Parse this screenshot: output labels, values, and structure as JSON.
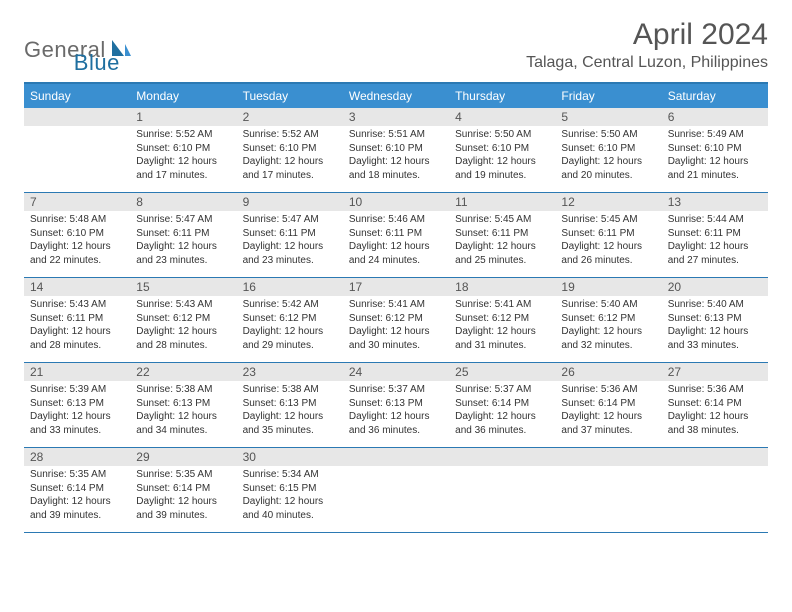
{
  "logo": {
    "text1": "General",
    "text2": "Blue"
  },
  "title": "April 2024",
  "location": "Talaga, Central Luzon, Philippines",
  "colors": {
    "header_bg": "#3a8fd0",
    "border": "#2b79b3",
    "daynum_bg": "#e7e7e7",
    "text": "#333333",
    "title_text": "#555555"
  },
  "weekdays": [
    "Sunday",
    "Monday",
    "Tuesday",
    "Wednesday",
    "Thursday",
    "Friday",
    "Saturday"
  ],
  "start_offset": 1,
  "days": [
    {
      "n": "1",
      "sr": "5:52 AM",
      "ss": "6:10 PM",
      "dl": "12 hours and 17 minutes."
    },
    {
      "n": "2",
      "sr": "5:52 AM",
      "ss": "6:10 PM",
      "dl": "12 hours and 17 minutes."
    },
    {
      "n": "3",
      "sr": "5:51 AM",
      "ss": "6:10 PM",
      "dl": "12 hours and 18 minutes."
    },
    {
      "n": "4",
      "sr": "5:50 AM",
      "ss": "6:10 PM",
      "dl": "12 hours and 19 minutes."
    },
    {
      "n": "5",
      "sr": "5:50 AM",
      "ss": "6:10 PM",
      "dl": "12 hours and 20 minutes."
    },
    {
      "n": "6",
      "sr": "5:49 AM",
      "ss": "6:10 PM",
      "dl": "12 hours and 21 minutes."
    },
    {
      "n": "7",
      "sr": "5:48 AM",
      "ss": "6:10 PM",
      "dl": "12 hours and 22 minutes."
    },
    {
      "n": "8",
      "sr": "5:47 AM",
      "ss": "6:11 PM",
      "dl": "12 hours and 23 minutes."
    },
    {
      "n": "9",
      "sr": "5:47 AM",
      "ss": "6:11 PM",
      "dl": "12 hours and 23 minutes."
    },
    {
      "n": "10",
      "sr": "5:46 AM",
      "ss": "6:11 PM",
      "dl": "12 hours and 24 minutes."
    },
    {
      "n": "11",
      "sr": "5:45 AM",
      "ss": "6:11 PM",
      "dl": "12 hours and 25 minutes."
    },
    {
      "n": "12",
      "sr": "5:45 AM",
      "ss": "6:11 PM",
      "dl": "12 hours and 26 minutes."
    },
    {
      "n": "13",
      "sr": "5:44 AM",
      "ss": "6:11 PM",
      "dl": "12 hours and 27 minutes."
    },
    {
      "n": "14",
      "sr": "5:43 AM",
      "ss": "6:11 PM",
      "dl": "12 hours and 28 minutes."
    },
    {
      "n": "15",
      "sr": "5:43 AM",
      "ss": "6:12 PM",
      "dl": "12 hours and 28 minutes."
    },
    {
      "n": "16",
      "sr": "5:42 AM",
      "ss": "6:12 PM",
      "dl": "12 hours and 29 minutes."
    },
    {
      "n": "17",
      "sr": "5:41 AM",
      "ss": "6:12 PM",
      "dl": "12 hours and 30 minutes."
    },
    {
      "n": "18",
      "sr": "5:41 AM",
      "ss": "6:12 PM",
      "dl": "12 hours and 31 minutes."
    },
    {
      "n": "19",
      "sr": "5:40 AM",
      "ss": "6:12 PM",
      "dl": "12 hours and 32 minutes."
    },
    {
      "n": "20",
      "sr": "5:40 AM",
      "ss": "6:13 PM",
      "dl": "12 hours and 33 minutes."
    },
    {
      "n": "21",
      "sr": "5:39 AM",
      "ss": "6:13 PM",
      "dl": "12 hours and 33 minutes."
    },
    {
      "n": "22",
      "sr": "5:38 AM",
      "ss": "6:13 PM",
      "dl": "12 hours and 34 minutes."
    },
    {
      "n": "23",
      "sr": "5:38 AM",
      "ss": "6:13 PM",
      "dl": "12 hours and 35 minutes."
    },
    {
      "n": "24",
      "sr": "5:37 AM",
      "ss": "6:13 PM",
      "dl": "12 hours and 36 minutes."
    },
    {
      "n": "25",
      "sr": "5:37 AM",
      "ss": "6:14 PM",
      "dl": "12 hours and 36 minutes."
    },
    {
      "n": "26",
      "sr": "5:36 AM",
      "ss": "6:14 PM",
      "dl": "12 hours and 37 minutes."
    },
    {
      "n": "27",
      "sr": "5:36 AM",
      "ss": "6:14 PM",
      "dl": "12 hours and 38 minutes."
    },
    {
      "n": "28",
      "sr": "5:35 AM",
      "ss": "6:14 PM",
      "dl": "12 hours and 39 minutes."
    },
    {
      "n": "29",
      "sr": "5:35 AM",
      "ss": "6:14 PM",
      "dl": "12 hours and 39 minutes."
    },
    {
      "n": "30",
      "sr": "5:34 AM",
      "ss": "6:15 PM",
      "dl": "12 hours and 40 minutes."
    }
  ],
  "labels": {
    "sunrise": "Sunrise:",
    "sunset": "Sunset:",
    "daylight": "Daylight:"
  }
}
